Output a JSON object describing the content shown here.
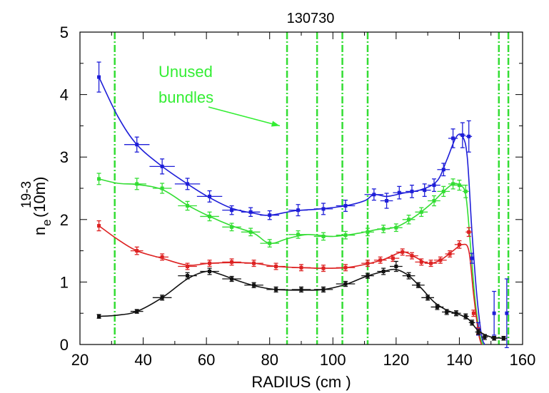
{
  "chart_data": {
    "type": "line",
    "title": "130730",
    "xlabel": "RADIUS (cm )",
    "ylabel_main": "n",
    "ylabel_sub": "e",
    "ylabel_unit": "(10m)",
    "ylabel_exp": "19-3",
    "xlim": [
      20,
      160
    ],
    "ylim": [
      0,
      5
    ],
    "x_ticks": [
      20,
      40,
      60,
      80,
      100,
      120,
      140,
      160
    ],
    "y_ticks": [
      0,
      1,
      2,
      3,
      4,
      5
    ],
    "grid": false,
    "legend": "none",
    "annotation": {
      "lines": [
        "Unused",
        "bundles"
      ],
      "arrow_target": {
        "x": 85,
        "y": 3.5
      }
    },
    "unused_bundle_x": [
      31,
      85.5,
      95,
      103,
      111,
      152.5,
      155.5
    ],
    "series": [
      {
        "color": "#1e1ed8",
        "points": [
          {
            "x": 26,
            "y": 4.28,
            "xe": 0.5,
            "ye": 0.24
          },
          {
            "x": 38,
            "y": 3.2,
            "xe": 4,
            "ye": 0.12
          },
          {
            "x": 46,
            "y": 2.85,
            "xe": 4,
            "ye": 0.12
          },
          {
            "x": 54,
            "y": 2.57,
            "xe": 4,
            "ye": 0.09
          },
          {
            "x": 61,
            "y": 2.37,
            "xe": 4,
            "ye": 0.09
          },
          {
            "x": 68,
            "y": 2.15,
            "xe": 3,
            "ye": 0.07
          },
          {
            "x": 74,
            "y": 2.12,
            "xe": 3,
            "ye": 0.07
          },
          {
            "x": 80,
            "y": 2.07,
            "xe": 3,
            "ye": 0.07
          },
          {
            "x": 89,
            "y": 2.15,
            "xe": 3,
            "ye": 0.09
          },
          {
            "x": 97,
            "y": 2.17,
            "xe": 3,
            "ye": 0.09
          },
          {
            "x": 104,
            "y": 2.22,
            "xe": 3,
            "ye": 0.09
          },
          {
            "x": 113,
            "y": 2.4,
            "xe": 3,
            "ye": 0.09
          },
          {
            "x": 117,
            "y": 2.3,
            "xe": 2,
            "ye": 0.12
          },
          {
            "x": 121,
            "y": 2.43,
            "xe": 2,
            "ye": 0.1
          },
          {
            "x": 125,
            "y": 2.45,
            "xe": 2,
            "ye": 0.1
          },
          {
            "x": 129,
            "y": 2.47,
            "xe": 2,
            "ye": 0.1
          },
          {
            "x": 132,
            "y": 2.55,
            "xe": 2,
            "ye": 0.1
          },
          {
            "x": 135,
            "y": 2.8,
            "xe": 2,
            "ye": 0.1
          },
          {
            "x": 138,
            "y": 3.3,
            "xe": 1.5,
            "ye": 0.15
          },
          {
            "x": 141,
            "y": 3.35,
            "xe": 1,
            "ye": 0.2
          },
          {
            "x": 143,
            "y": 3.33,
            "xe": 1,
            "ye": 0.25
          },
          {
            "x": 144,
            "y": 1.38,
            "xe": 0.5,
            "ye": 0.08
          },
          {
            "x": 146,
            "y": 0.25,
            "xe": 0.5,
            "ye": 0.1
          },
          {
            "x": 151,
            "y": 0.5,
            "xe": 0.5,
            "ye": 0.35
          },
          {
            "x": 155,
            "y": 0.5,
            "xe": 0.5,
            "ye": 0.55
          }
        ],
        "curve": [
          [
            26,
            4.28
          ],
          [
            32,
            3.65
          ],
          [
            38,
            3.2
          ],
          [
            46,
            2.85
          ],
          [
            54,
            2.57
          ],
          [
            61,
            2.35
          ],
          [
            68,
            2.18
          ],
          [
            75,
            2.1
          ],
          [
            80,
            2.07
          ],
          [
            88,
            2.14
          ],
          [
            96,
            2.17
          ],
          [
            104,
            2.22
          ],
          [
            110,
            2.3
          ],
          [
            113,
            2.4
          ],
          [
            117,
            2.37
          ],
          [
            122,
            2.42
          ],
          [
            128,
            2.48
          ],
          [
            133,
            2.62
          ],
          [
            136,
            2.95
          ],
          [
            139,
            3.32
          ],
          [
            141,
            3.33
          ],
          [
            142.5,
            3.0
          ],
          [
            144,
            1.8
          ],
          [
            145.5,
            0.8
          ],
          [
            147,
            0.15
          ],
          [
            148,
            0.0
          ]
        ]
      },
      {
        "color": "#33dd33",
        "points": [
          {
            "x": 26,
            "y": 2.65,
            "xe": 0.5,
            "ye": 0.09
          },
          {
            "x": 38,
            "y": 2.57,
            "xe": 3,
            "ye": 0.09
          },
          {
            "x": 46,
            "y": 2.5,
            "xe": 3,
            "ye": 0.08
          },
          {
            "x": 54,
            "y": 2.22,
            "xe": 3,
            "ye": 0.07
          },
          {
            "x": 61,
            "y": 2.05,
            "xe": 3,
            "ye": 0.07
          },
          {
            "x": 68,
            "y": 1.88,
            "xe": 3,
            "ye": 0.06
          },
          {
            "x": 74,
            "y": 1.8,
            "xe": 3,
            "ye": 0.06
          },
          {
            "x": 80,
            "y": 1.62,
            "xe": 3,
            "ye": 0.06
          },
          {
            "x": 89,
            "y": 1.76,
            "xe": 3,
            "ye": 0.06
          },
          {
            "x": 97,
            "y": 1.73,
            "xe": 3,
            "ye": 0.06
          },
          {
            "x": 104,
            "y": 1.75,
            "xe": 3,
            "ye": 0.06
          },
          {
            "x": 111,
            "y": 1.8,
            "xe": 2,
            "ye": 0.06
          },
          {
            "x": 116,
            "y": 1.85,
            "xe": 2,
            "ye": 0.06
          },
          {
            "x": 120,
            "y": 1.87,
            "xe": 2,
            "ye": 0.06
          },
          {
            "x": 124,
            "y": 2.0,
            "xe": 2,
            "ye": 0.07
          },
          {
            "x": 128,
            "y": 2.12,
            "xe": 2,
            "ye": 0.07
          },
          {
            "x": 132,
            "y": 2.3,
            "xe": 2,
            "ye": 0.08
          },
          {
            "x": 135,
            "y": 2.45,
            "xe": 2,
            "ye": 0.08
          },
          {
            "x": 138,
            "y": 2.57,
            "xe": 1.5,
            "ye": 0.08
          },
          {
            "x": 140,
            "y": 2.55,
            "xe": 1.5,
            "ye": 0.08
          },
          {
            "x": 142,
            "y": 2.45,
            "xe": 1,
            "ye": 0.1
          }
        ],
        "curve": [
          [
            26,
            2.65
          ],
          [
            32,
            2.58
          ],
          [
            38,
            2.56
          ],
          [
            46,
            2.48
          ],
          [
            54,
            2.23
          ],
          [
            61,
            2.05
          ],
          [
            68,
            1.9
          ],
          [
            75,
            1.78
          ],
          [
            80,
            1.62
          ],
          [
            86,
            1.7
          ],
          [
            92,
            1.76
          ],
          [
            100,
            1.73
          ],
          [
            108,
            1.78
          ],
          [
            114,
            1.84
          ],
          [
            120,
            1.88
          ],
          [
            126,
            2.05
          ],
          [
            131,
            2.25
          ],
          [
            135,
            2.45
          ],
          [
            138,
            2.57
          ],
          [
            140,
            2.55
          ],
          [
            142,
            2.4
          ],
          [
            143.5,
            1.6
          ],
          [
            145,
            0.7
          ],
          [
            146.5,
            0.15
          ],
          [
            147.5,
            0.0
          ]
        ]
      },
      {
        "color": "#dd2222",
        "points": [
          {
            "x": 26,
            "y": 1.9,
            "xe": 0.5,
            "ye": 0.08
          },
          {
            "x": 38,
            "y": 1.5,
            "xe": 2,
            "ye": 0.06
          },
          {
            "x": 46,
            "y": 1.4,
            "xe": 2,
            "ye": 0.05
          },
          {
            "x": 54,
            "y": 1.25,
            "xe": 3,
            "ye": 0.05
          },
          {
            "x": 61,
            "y": 1.3,
            "xe": 3,
            "ye": 0.05
          },
          {
            "x": 68,
            "y": 1.32,
            "xe": 3,
            "ye": 0.05
          },
          {
            "x": 75,
            "y": 1.3,
            "xe": 3,
            "ye": 0.05
          },
          {
            "x": 82,
            "y": 1.25,
            "xe": 3,
            "ye": 0.05
          },
          {
            "x": 90,
            "y": 1.23,
            "xe": 3,
            "ye": 0.05
          },
          {
            "x": 97,
            "y": 1.22,
            "xe": 3,
            "ye": 0.05
          },
          {
            "x": 104,
            "y": 1.23,
            "xe": 3,
            "ye": 0.05
          },
          {
            "x": 111,
            "y": 1.3,
            "xe": 2,
            "ye": 0.05
          },
          {
            "x": 115,
            "y": 1.35,
            "xe": 2,
            "ye": 0.05
          },
          {
            "x": 119,
            "y": 1.38,
            "xe": 2,
            "ye": 0.05
          },
          {
            "x": 122,
            "y": 1.48,
            "xe": 2,
            "ye": 0.05
          },
          {
            "x": 125,
            "y": 1.42,
            "xe": 2,
            "ye": 0.05
          },
          {
            "x": 128,
            "y": 1.32,
            "xe": 2,
            "ye": 0.05
          },
          {
            "x": 131,
            "y": 1.3,
            "xe": 2,
            "ye": 0.05
          },
          {
            "x": 134,
            "y": 1.35,
            "xe": 2,
            "ye": 0.05
          },
          {
            "x": 137,
            "y": 1.45,
            "xe": 1.5,
            "ye": 0.05
          },
          {
            "x": 140,
            "y": 1.6,
            "xe": 1.5,
            "ye": 0.06
          },
          {
            "x": 143,
            "y": 1.8,
            "xe": 1,
            "ye": 0.07
          },
          {
            "x": 144.5,
            "y": 0.5,
            "xe": 0.5,
            "ye": 0.05
          },
          {
            "x": 146,
            "y": 0.22,
            "xe": 0.5,
            "ye": 0.05
          }
        ],
        "curve": [
          [
            26,
            1.9
          ],
          [
            32,
            1.68
          ],
          [
            38,
            1.5
          ],
          [
            46,
            1.38
          ],
          [
            54,
            1.27
          ],
          [
            61,
            1.3
          ],
          [
            68,
            1.31
          ],
          [
            75,
            1.3
          ],
          [
            82,
            1.25
          ],
          [
            90,
            1.23
          ],
          [
            97,
            1.22
          ],
          [
            104,
            1.23
          ],
          [
            110,
            1.28
          ],
          [
            116,
            1.36
          ],
          [
            122,
            1.48
          ],
          [
            126,
            1.4
          ],
          [
            130,
            1.3
          ],
          [
            134,
            1.35
          ],
          [
            138,
            1.5
          ],
          [
            141,
            1.6
          ],
          [
            143,
            1.5
          ],
          [
            144.5,
            0.8
          ],
          [
            146,
            0.2
          ],
          [
            147,
            0.0
          ]
        ]
      },
      {
        "color": "#111111",
        "points": [
          {
            "x": 26,
            "y": 0.45,
            "xe": 0.5,
            "ye": 0.03
          },
          {
            "x": 38,
            "y": 0.53,
            "xe": 2,
            "ye": 0.03
          },
          {
            "x": 46,
            "y": 0.75,
            "xe": 3,
            "ye": 0.04
          },
          {
            "x": 54,
            "y": 1.1,
            "xe": 3,
            "ye": 0.05
          },
          {
            "x": 61,
            "y": 1.17,
            "xe": 3,
            "ye": 0.05
          },
          {
            "x": 68,
            "y": 1.05,
            "xe": 3,
            "ye": 0.04
          },
          {
            "x": 75,
            "y": 0.95,
            "xe": 3,
            "ye": 0.04
          },
          {
            "x": 82,
            "y": 0.88,
            "xe": 3,
            "ye": 0.04
          },
          {
            "x": 90,
            "y": 0.88,
            "xe": 3,
            "ye": 0.04
          },
          {
            "x": 97,
            "y": 0.88,
            "xe": 3,
            "ye": 0.04
          },
          {
            "x": 104,
            "y": 0.97,
            "xe": 3,
            "ye": 0.04
          },
          {
            "x": 111,
            "y": 1.1,
            "xe": 2,
            "ye": 0.04
          },
          {
            "x": 116,
            "y": 1.17,
            "xe": 2,
            "ye": 0.05
          },
          {
            "x": 120,
            "y": 1.25,
            "xe": 2,
            "ye": 0.08
          },
          {
            "x": 124,
            "y": 1.1,
            "xe": 2,
            "ye": 0.05
          },
          {
            "x": 127,
            "y": 0.95,
            "xe": 2,
            "ye": 0.04
          },
          {
            "x": 130,
            "y": 0.75,
            "xe": 2,
            "ye": 0.04
          },
          {
            "x": 133,
            "y": 0.6,
            "xe": 2,
            "ye": 0.04
          },
          {
            "x": 136,
            "y": 0.52,
            "xe": 1.5,
            "ye": 0.04
          },
          {
            "x": 139,
            "y": 0.5,
            "xe": 1.5,
            "ye": 0.04
          },
          {
            "x": 142,
            "y": 0.45,
            "xe": 1,
            "ye": 0.04
          },
          {
            "x": 144,
            "y": 0.35,
            "xe": 1,
            "ye": 0.04
          },
          {
            "x": 146,
            "y": 0.2,
            "xe": 1,
            "ye": 0.04
          },
          {
            "x": 148,
            "y": 0.12,
            "xe": 1,
            "ye": 0.04
          },
          {
            "x": 151,
            "y": 0.1,
            "xe": 1,
            "ye": 0.03
          },
          {
            "x": 154,
            "y": 0.1,
            "xe": 1,
            "ye": 0.03
          }
        ],
        "curve": [
          [
            26,
            0.45
          ],
          [
            32,
            0.47
          ],
          [
            38,
            0.53
          ],
          [
            46,
            0.75
          ],
          [
            54,
            1.05
          ],
          [
            60,
            1.17
          ],
          [
            64,
            1.13
          ],
          [
            70,
            1.02
          ],
          [
            76,
            0.93
          ],
          [
            82,
            0.88
          ],
          [
            90,
            0.87
          ],
          [
            97,
            0.88
          ],
          [
            104,
            0.96
          ],
          [
            110,
            1.08
          ],
          [
            116,
            1.17
          ],
          [
            120,
            1.2
          ],
          [
            124,
            1.1
          ],
          [
            128,
            0.9
          ],
          [
            132,
            0.68
          ],
          [
            136,
            0.55
          ],
          [
            140,
            0.48
          ],
          [
            143,
            0.4
          ],
          [
            146,
            0.22
          ],
          [
            150,
            0.12
          ],
          [
            154,
            0.1
          ]
        ]
      }
    ]
  }
}
